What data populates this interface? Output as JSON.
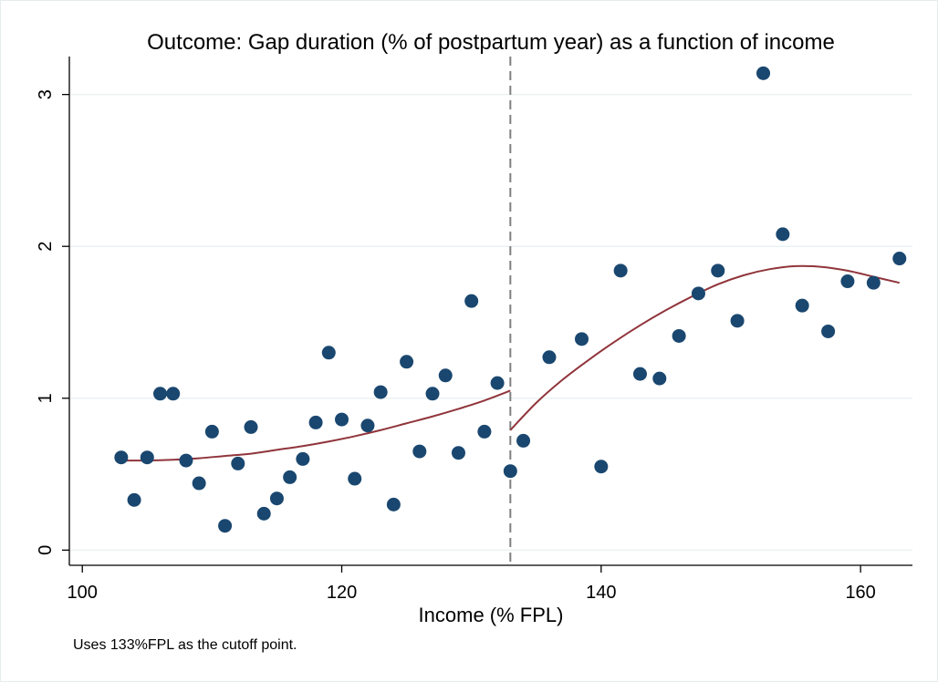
{
  "chart_data": {
    "type": "scatter",
    "title": "Outcome: Gap duration (% of postpartum year) as a function of income",
    "xlabel": "Income (% FPL)",
    "ylabel": "",
    "note": "Uses 133%FPL as the cutoff point.",
    "xlim": [
      99,
      164
    ],
    "ylim": [
      -0.1,
      3.25
    ],
    "xticks": [
      100,
      120,
      140,
      160
    ],
    "yticks": [
      0,
      1,
      2,
      3
    ],
    "grid": true,
    "cutoff": 133,
    "colors": {
      "points": "#1a476f",
      "fit": "#90353b",
      "cutoff": "#808080",
      "grid": "#eaf2f3"
    },
    "points": [
      [
        103,
        0.61
      ],
      [
        104,
        0.33
      ],
      [
        105,
        0.61
      ],
      [
        106,
        1.03
      ],
      [
        107,
        1.03
      ],
      [
        108,
        0.59
      ],
      [
        109,
        0.44
      ],
      [
        110,
        0.78
      ],
      [
        111,
        0.16
      ],
      [
        112,
        0.57
      ],
      [
        113,
        0.81
      ],
      [
        114,
        0.24
      ],
      [
        115,
        0.34
      ],
      [
        116,
        0.48
      ],
      [
        117,
        0.6
      ],
      [
        118,
        0.84
      ],
      [
        119,
        1.3
      ],
      [
        120,
        0.86
      ],
      [
        121,
        0.47
      ],
      [
        122,
        0.82
      ],
      [
        123,
        1.04
      ],
      [
        124,
        0.3
      ],
      [
        125,
        1.24
      ],
      [
        126,
        0.65
      ],
      [
        127,
        1.03
      ],
      [
        128,
        1.15
      ],
      [
        129,
        0.64
      ],
      [
        130,
        1.64
      ],
      [
        131,
        0.78
      ],
      [
        132,
        1.1
      ],
      [
        133,
        0.52
      ],
      [
        134,
        0.72
      ],
      [
        136,
        1.27
      ],
      [
        138.5,
        1.39
      ],
      [
        140,
        0.55
      ],
      [
        141.5,
        1.84
      ],
      [
        143,
        1.16
      ],
      [
        144.5,
        1.13
      ],
      [
        146,
        1.41
      ],
      [
        147.5,
        1.69
      ],
      [
        149,
        1.84
      ],
      [
        150.5,
        1.51
      ],
      [
        152.5,
        3.14
      ],
      [
        154,
        2.08
      ],
      [
        155.5,
        1.61
      ],
      [
        157.5,
        1.44
      ],
      [
        159,
        1.77
      ],
      [
        161,
        1.76
      ],
      [
        163,
        1.92
      ]
    ],
    "fit_left": [
      [
        103,
        0.59
      ],
      [
        105,
        0.59
      ],
      [
        107,
        0.595
      ],
      [
        109,
        0.605
      ],
      [
        111,
        0.62
      ],
      [
        113,
        0.635
      ],
      [
        115,
        0.66
      ],
      [
        117,
        0.685
      ],
      [
        119,
        0.715
      ],
      [
        121,
        0.75
      ],
      [
        123,
        0.79
      ],
      [
        125,
        0.835
      ],
      [
        127,
        0.88
      ],
      [
        129,
        0.93
      ],
      [
        131,
        0.985
      ],
      [
        133,
        1.05
      ]
    ],
    "fit_right": [
      [
        133,
        0.79
      ],
      [
        135,
        0.97
      ],
      [
        137,
        1.12
      ],
      [
        139,
        1.25
      ],
      [
        141,
        1.37
      ],
      [
        143,
        1.48
      ],
      [
        145,
        1.58
      ],
      [
        147,
        1.67
      ],
      [
        149,
        1.75
      ],
      [
        151,
        1.81
      ],
      [
        153,
        1.85
      ],
      [
        155,
        1.87
      ],
      [
        157,
        1.865
      ],
      [
        159,
        1.84
      ],
      [
        161,
        1.8
      ],
      [
        163,
        1.76
      ]
    ]
  }
}
